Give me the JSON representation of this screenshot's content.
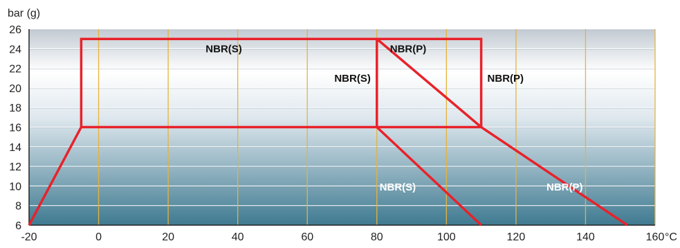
{
  "chart_data": {
    "type": "line",
    "title": "",
    "xlabel": "°C",
    "ylabel": "bar (g)",
    "xlim": [
      -20,
      160
    ],
    "ylim": [
      6,
      26
    ],
    "x_ticks": [
      -20,
      0,
      20,
      40,
      60,
      80,
      100,
      120,
      140,
      160
    ],
    "x_tick_labels": [
      "-20",
      "0",
      "20",
      "40",
      "60",
      "80",
      "100",
      "120",
      "140",
      "160"
    ],
    "y_ticks": [
      6,
      8,
      10,
      12,
      14,
      16,
      18,
      20,
      22,
      24,
      26
    ],
    "y_tick_labels": [
      "6",
      "8",
      "10",
      "12",
      "14",
      "16",
      "18",
      "20",
      "22",
      "24",
      "26"
    ],
    "grid": "horizontal white lines every 2 bar, vertical orange lines every 20 °C",
    "background": "gradient from light gray-white at top to steel blue at bottom",
    "colors": {
      "boundary": "#e8222a",
      "vertical_grid": "#e8b23a",
      "horizontal_grid": "#ffffff",
      "gradient_top": "#c2cad2",
      "gradient_mid": "#ffffff",
      "gradient_bottom": "#3f7a91"
    },
    "series": [
      {
        "label": "NBR(S)",
        "color": "#e8222a",
        "points": [
          [
            -20,
            6
          ],
          [
            -5,
            16
          ],
          [
            -5,
            25
          ],
          [
            80,
            25
          ],
          [
            80,
            16
          ],
          [
            110,
            6
          ]
        ]
      },
      {
        "label": "NBR(P)",
        "color": "#e8222a",
        "points": [
          [
            -5,
            16
          ],
          [
            80,
            16
          ],
          [
            110,
            16
          ],
          [
            110,
            25
          ],
          [
            80,
            25
          ],
          [
            110,
            16
          ],
          [
            152,
            6
          ]
        ]
      }
    ],
    "annotations": [
      {
        "text": "NBR(S)",
        "x": 36,
        "y": 24,
        "color": "#111111"
      },
      {
        "text": "NBR(P)",
        "x": 89,
        "y": 24,
        "color": "#111111"
      },
      {
        "text": "NBR(S)",
        "x": 73,
        "y": 21,
        "color": "#111111"
      },
      {
        "text": "NBR(P)",
        "x": 117,
        "y": 21,
        "color": "#111111"
      },
      {
        "text": "NBR(S)",
        "x": 86,
        "y": 9.9,
        "color": "#ffffff"
      },
      {
        "text": "NBR(P)",
        "x": 134,
        "y": 9.9,
        "color": "#ffffff"
      }
    ]
  }
}
